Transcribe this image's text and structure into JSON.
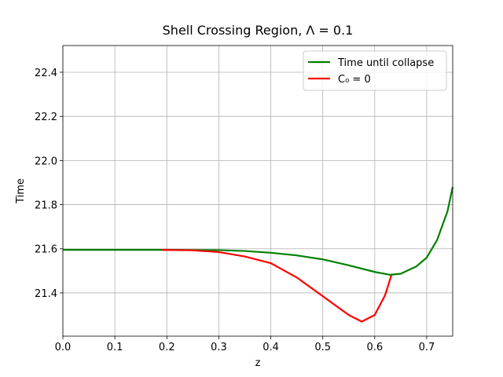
{
  "chart_data": {
    "type": "line",
    "title": "Shell Crossing Region, Λ = 0.1",
    "xlabel": "z",
    "ylabel": "Time",
    "xlim": [
      0,
      0.75
    ],
    "ylim": [
      21.204,
      22.521
    ],
    "xticks": [
      {
        "value": 0,
        "label": "0.0"
      },
      0.1,
      0.2,
      0.3,
      0.4,
      0.5,
      0.6,
      0.7
    ],
    "yticks": [
      21.4,
      21.6,
      21.8,
      {
        "value": 22,
        "label": "22.0"
      },
      22.2,
      22.4
    ],
    "grid": true,
    "legend": "upper right",
    "series": [
      {
        "name": "Time until collapse",
        "color": "#008000",
        "x": [
          0,
          0.1,
          0.2,
          0.3,
          0.35,
          0.4,
          0.45,
          0.5,
          0.55,
          0.6,
          0.63,
          0.65,
          0.68,
          0.7,
          0.72,
          0.74,
          0.75
        ],
        "values": [
          21.595,
          21.595,
          21.595,
          21.594,
          21.59,
          21.582,
          21.57,
          21.552,
          21.525,
          21.495,
          21.482,
          21.487,
          21.52,
          21.56,
          21.64,
          21.77,
          21.88
        ]
      },
      {
        "name": "C₀ = 0",
        "color": "#ff0000",
        "x": [
          0.19,
          0.25,
          0.3,
          0.35,
          0.4,
          0.45,
          0.5,
          0.55,
          0.575,
          0.6,
          0.62,
          0.632
        ],
        "values": [
          21.595,
          21.593,
          21.585,
          21.565,
          21.535,
          21.47,
          21.385,
          21.3,
          21.27,
          21.3,
          21.39,
          21.48
        ]
      }
    ]
  }
}
